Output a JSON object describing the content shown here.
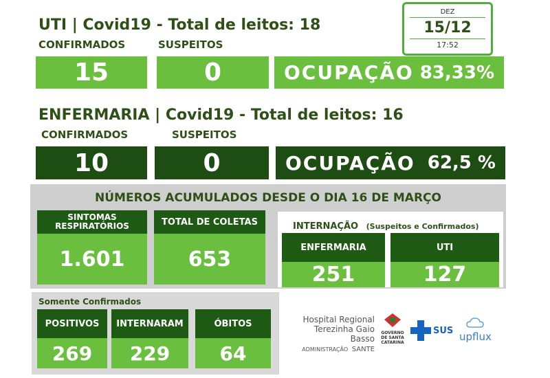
{
  "uti": {
    "title": "UTI | Covid19 - Total de leitos: 18",
    "confirmados_label": "CONFIRMADOS",
    "suspeitos_label": "SUSPEITOS",
    "confirmados": "15",
    "suspeitos": "0",
    "ocupacao_label": "OCUPAÇÃO",
    "ocupacao_value": "83,33%"
  },
  "date": {
    "month": "DEZ",
    "day": "15/12",
    "time": "17:52"
  },
  "enfermaria": {
    "title": "ENFERMARIA | Covid19 - Total de leitos: 16",
    "confirmados_label": "CONFIRMADOS",
    "suspeitos_label": "SUSPEITOS",
    "confirmados": "10",
    "suspeitos": "0",
    "ocupacao_label": "OCUPAÇÃO",
    "ocupacao_value": "62,5 %"
  },
  "acumulados": {
    "heading": "NÚMEROS ACUMULADOS DESDE O DIA 16 DE MARÇO",
    "sintomas_label": "SINTOMAS RESPIRATÓRIOS",
    "sintomas_value": "1.601",
    "coletas_label": "TOTAL DE COLETAS",
    "coletas_value": "653",
    "internacao_label": "INTERNAÇÃO",
    "internacao_sub": "(Suspeitos e Confirmados)",
    "enfermaria_label": "ENFERMARIA",
    "enfermaria_value": "251",
    "uti_label": "UTI",
    "uti_value": "127"
  },
  "confirmados_only": {
    "heading": "Somente Confirmados",
    "positivos_label": "POSITIVOS",
    "positivos_value": "269",
    "internaram_label": "INTERNARAM",
    "internaram_value": "229",
    "obitos_label": "ÓBITOS",
    "obitos_value": "64"
  },
  "logos": {
    "hospital_line1": "Hospital Regional",
    "hospital_line2": "Terezinha Gaio Basso",
    "admin_label": "ADMINISTRAÇÃO",
    "admin_name": "SANTE",
    "gov_line1": "GOVERNO",
    "gov_line2": "DE SANTA",
    "gov_line3": "CATARINA",
    "sus": "SUS",
    "upflux": "upflux"
  },
  "colors": {
    "light_green": "#6bbf3e",
    "dark_green": "#1e4d14",
    "title_green": "#2d5016",
    "gray_panel": "#cfcfcf"
  }
}
